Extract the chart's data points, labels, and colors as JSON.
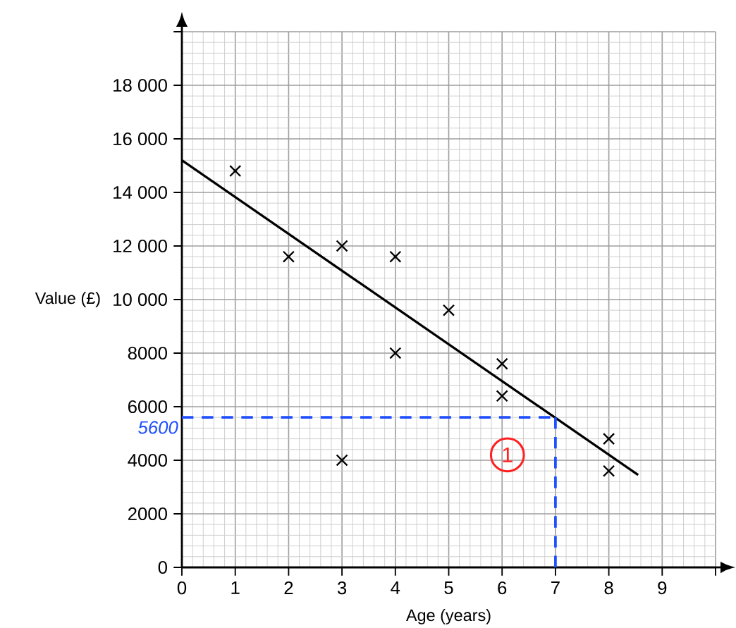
{
  "chart_data": {
    "type": "scatter",
    "xlabel": "Age (years)",
    "ylabel": "Value (£)",
    "xlim": [
      0,
      10
    ],
    "ylim": [
      0,
      20000
    ],
    "xticks": [
      0,
      1,
      2,
      3,
      4,
      5,
      6,
      7,
      8,
      9,
      {
        "value": 10,
        "label": null
      }
    ],
    "yticks": [
      0,
      2000,
      4000,
      6000,
      8000,
      {
        "value": 10000,
        "label": "10 000"
      },
      {
        "value": 12000,
        "label": "12 000"
      },
      {
        "value": 14000,
        "label": "14 000"
      },
      {
        "value": 16000,
        "label": "16 000"
      },
      {
        "value": 18000,
        "label": "18 000"
      },
      {
        "value": 20000,
        "label": null
      }
    ],
    "grid": true,
    "series": [
      {
        "marker": "cross",
        "color": "#000000",
        "x": [
          1,
          2,
          3,
          3,
          4,
          4,
          5,
          6,
          6,
          8,
          8
        ],
        "values": [
          14800,
          11600,
          12000,
          4000,
          11600,
          8000,
          9600,
          7600,
          6400,
          4800,
          3600
        ]
      },
      {
        "type": "line",
        "marker": "none",
        "color": "#000000",
        "x": [
          0,
          8.55
        ],
        "values": [
          15200,
          3450
        ]
      }
    ],
    "ref_lines": [
      {
        "axis": "y",
        "value": 5600,
        "label": "5600",
        "color": "#1f4fff",
        "line_style": "dashed"
      },
      {
        "axis": "x",
        "value": 7,
        "color": "#1f4fff",
        "line_style": "dashed"
      }
    ],
    "annotations": [
      "1"
    ]
  }
}
